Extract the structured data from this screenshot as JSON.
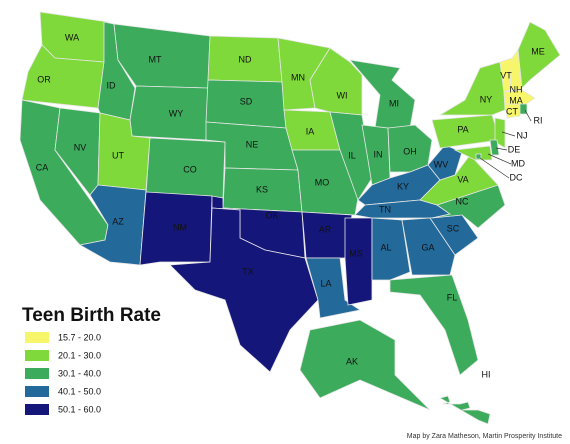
{
  "title": "Teen Birth Rate",
  "legend": [
    {
      "label": "15.7 - 20.0",
      "color": "#f7f56a"
    },
    {
      "label": "20.1 - 30.0",
      "color": "#80d93a"
    },
    {
      "label": "30.1 - 40.0",
      "color": "#3cac5c"
    },
    {
      "label": "40.1 - 50.0",
      "color": "#23699a"
    },
    {
      "label": "50.1 - 60.0",
      "color": "#15167a"
    }
  ],
  "states": [
    {
      "label": "WA",
      "color": "#80d93a"
    },
    {
      "label": "OR",
      "color": "#80d93a"
    },
    {
      "label": "CA",
      "color": "#3cac5c"
    },
    {
      "label": "NV",
      "color": "#3cac5c"
    },
    {
      "label": "ID",
      "color": "#3cac5c"
    },
    {
      "label": "MT",
      "color": "#3cac5c"
    },
    {
      "label": "WY",
      "color": "#3cac5c"
    },
    {
      "label": "UT",
      "color": "#80d93a"
    },
    {
      "label": "CO",
      "color": "#3cac5c"
    },
    {
      "label": "AZ",
      "color": "#23699a"
    },
    {
      "label": "NM",
      "color": "#15167a"
    },
    {
      "label": "ND",
      "color": "#80d93a"
    },
    {
      "label": "SD",
      "color": "#3cac5c"
    },
    {
      "label": "NE",
      "color": "#3cac5c"
    },
    {
      "label": "KS",
      "color": "#3cac5c"
    },
    {
      "label": "OK",
      "color": "#15167a"
    },
    {
      "label": "TX",
      "color": "#15167a"
    },
    {
      "label": "MN",
      "color": "#80d93a"
    },
    {
      "label": "IA",
      "color": "#80d93a"
    },
    {
      "label": "MO",
      "color": "#3cac5c"
    },
    {
      "label": "AR",
      "color": "#15167a"
    },
    {
      "label": "LA",
      "color": "#23699a"
    },
    {
      "label": "WI",
      "color": "#80d93a"
    },
    {
      "label": "IL",
      "color": "#3cac5c"
    },
    {
      "label": "MS",
      "color": "#15167a"
    },
    {
      "label": "MI",
      "color": "#3cac5c"
    },
    {
      "label": "IN",
      "color": "#3cac5c"
    },
    {
      "label": "OH",
      "color": "#3cac5c"
    },
    {
      "label": "KY",
      "color": "#23699a"
    },
    {
      "label": "TN",
      "color": "#23699a"
    },
    {
      "label": "AL",
      "color": "#23699a"
    },
    {
      "label": "GA",
      "color": "#23699a"
    },
    {
      "label": "FL",
      "color": "#3cac5c"
    },
    {
      "label": "SC",
      "color": "#23699a"
    },
    {
      "label": "NC",
      "color": "#3cac5c"
    },
    {
      "label": "VA",
      "color": "#80d93a"
    },
    {
      "label": "WV",
      "color": "#23699a"
    },
    {
      "label": "PA",
      "color": "#80d93a"
    },
    {
      "label": "NY",
      "color": "#80d93a"
    },
    {
      "label": "NJ",
      "color": "#80d93a"
    },
    {
      "label": "MD",
      "color": "#80d93a"
    },
    {
      "label": "DE",
      "color": "#3cac5c"
    },
    {
      "label": "DC",
      "color": "#3cac5c"
    },
    {
      "label": "VT",
      "color": "#f7f56a"
    },
    {
      "label": "NH",
      "color": "#f7f56a"
    },
    {
      "label": "ME",
      "color": "#80d93a"
    },
    {
      "label": "MA",
      "color": "#f7f56a"
    },
    {
      "label": "CT",
      "color": "#f7f56a"
    },
    {
      "label": "RI",
      "color": "#3cac5c"
    },
    {
      "label": "AK",
      "color": "#3cac5c"
    },
    {
      "label": "HI",
      "color": "#3cac5c"
    }
  ],
  "credit": "Map by Zara Matheson, Martin Prosperity Institute"
}
